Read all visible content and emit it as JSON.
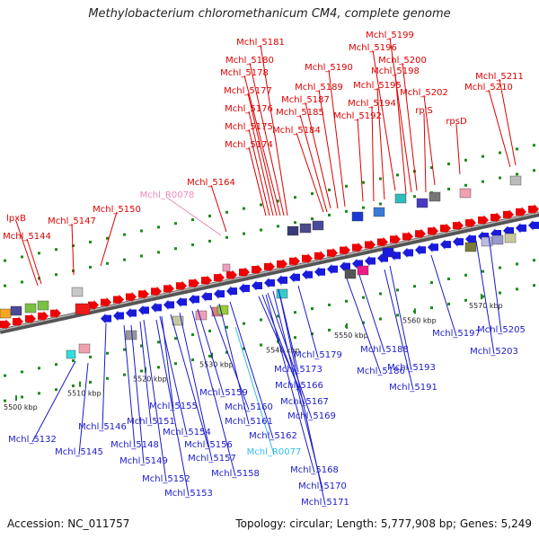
{
  "title": "Methylobacterium chloromethanicum CM4, complete genome",
  "footer": {
    "accession": "Accession: NC_011757",
    "summary": "Topology: circular; Length: 5,777,908 bp; Genes: 5,249"
  },
  "colors": {
    "forward_label": "#dd0000",
    "reverse_label": "#1a1acc",
    "rna_forward_label": "#ee88bb",
    "rna_reverse_label": "#33bbee",
    "axis": "#888888",
    "tick": "#1a8a1a"
  },
  "ruler": [
    {
      "label": "5500 kbp"
    },
    {
      "label": "5510 kbp"
    },
    {
      "label": "5520 kbp"
    },
    {
      "label": "5530 kbp"
    },
    {
      "label": "5540 kbp"
    },
    {
      "label": "5550 kbp"
    },
    {
      "label": "5560 kbp"
    },
    {
      "label": "5570 kbp"
    }
  ],
  "genes_forward": [
    {
      "label": "lpxB"
    },
    {
      "label": "Mchl_5144"
    },
    {
      "label": "Mchl_5147"
    },
    {
      "label": "Mchl_5150"
    },
    {
      "label": "Mchl_R0078"
    },
    {
      "label": "Mchl_5164"
    },
    {
      "label": "Mchl_5174"
    },
    {
      "label": "Mchl_5175"
    },
    {
      "label": "Mchl_5176"
    },
    {
      "label": "Mchl_5177"
    },
    {
      "label": "Mchl_5178"
    },
    {
      "label": "Mchl_5180"
    },
    {
      "label": "Mchl_5181"
    },
    {
      "label": "Mchl_5184"
    },
    {
      "label": "Mchl_5185"
    },
    {
      "label": "Mchl_5187"
    },
    {
      "label": "Mchl_5189"
    },
    {
      "label": "Mchl_5190"
    },
    {
      "label": "Mchl_5192"
    },
    {
      "label": "Mchl_5194"
    },
    {
      "label": "Mchl_5195"
    },
    {
      "label": "Mchl_5196"
    },
    {
      "label": "Mchl_5198"
    },
    {
      "label": "Mchl_5199"
    },
    {
      "label": "Mchl_5200"
    },
    {
      "label": "rplS"
    },
    {
      "label": "Mchl_5202"
    },
    {
      "label": "rpsD"
    },
    {
      "label": "Mchl_5210"
    },
    {
      "label": "Mchl_5211"
    }
  ],
  "genes_reverse": [
    {
      "label": "Mchl_5132"
    },
    {
      "label": "Mchl_5145"
    },
    {
      "label": "Mchl_5146"
    },
    {
      "label": "Mchl_5148"
    },
    {
      "label": "Mchl_5149"
    },
    {
      "label": "Mchl_5151"
    },
    {
      "label": "Mchl_5152"
    },
    {
      "label": "Mchl_5153"
    },
    {
      "label": "Mchl_5154"
    },
    {
      "label": "Mchl_5155"
    },
    {
      "label": "Mchl_5156"
    },
    {
      "label": "Mchl_5157"
    },
    {
      "label": "Mchl_5158"
    },
    {
      "label": "Mchl_5159"
    },
    {
      "label": "Mchl_5160"
    },
    {
      "label": "Mchl_5161"
    },
    {
      "label": "Mchl_5162"
    },
    {
      "label": "Mchl_R0077"
    },
    {
      "label": "Mchl_5166"
    },
    {
      "label": "Mchl_5167"
    },
    {
      "label": "Mchl_5168"
    },
    {
      "label": "Mchl_5169"
    },
    {
      "label": "Mchl_5170"
    },
    {
      "label": "Mchl_5171"
    },
    {
      "label": "Mchl_5173"
    },
    {
      "label": "Mchl_5179"
    },
    {
      "label": "Mchl_5186"
    },
    {
      "label": "Mchl_5188"
    },
    {
      "label": "Mchl_5191"
    },
    {
      "label": "Mchl_5193"
    },
    {
      "label": "Mchl_5197"
    },
    {
      "label": "Mchl_5203"
    },
    {
      "label": "Mchl_5205"
    }
  ]
}
